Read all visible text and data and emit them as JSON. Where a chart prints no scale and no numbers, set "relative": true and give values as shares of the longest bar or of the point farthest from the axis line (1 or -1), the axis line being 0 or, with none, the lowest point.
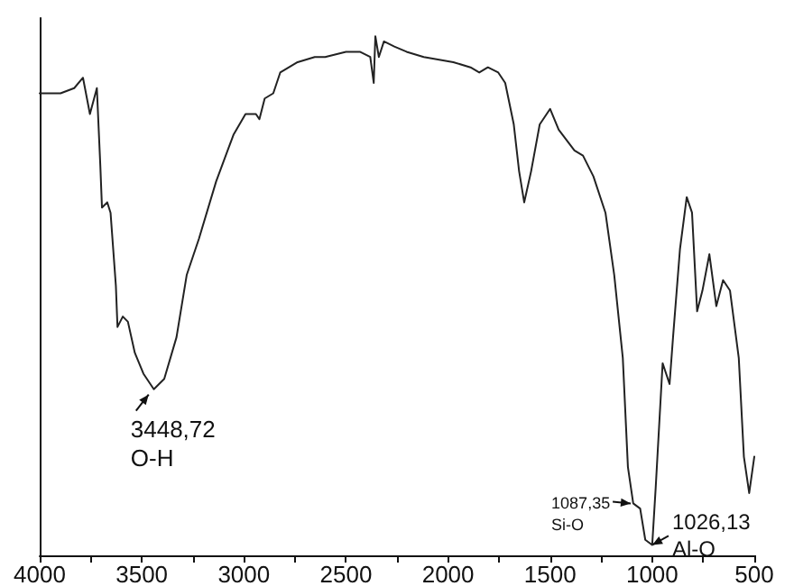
{
  "chart_data": {
    "type": "line",
    "relative": true,
    "color": "#222222",
    "x": [
      4000,
      3898,
      3831,
      3788,
      3754,
      3720,
      3703,
      3695,
      3669,
      3653,
      3627,
      3619,
      3593,
      3568,
      3534,
      3492,
      3441,
      3390,
      3330,
      3280,
      3220,
      3136,
      3051,
      2992,
      2941,
      2924,
      2898,
      2856,
      2822,
      2737,
      2653,
      2602,
      2500,
      2432,
      2381,
      2364,
      2356,
      2339,
      2314,
      2263,
      2203,
      2119,
      1974,
      1890,
      1847,
      1805,
      1754,
      1720,
      1678,
      1652,
      1627,
      1593,
      1551,
      1500,
      1458,
      1381,
      1339,
      1288,
      1229,
      1186,
      1144,
      1119,
      1093,
      1059,
      1034,
      1000,
      983,
      949,
      915,
      898,
      864,
      831,
      805,
      780,
      754,
      720,
      686,
      653,
      619,
      576,
      551,
      525,
      500
    ],
    "values": [
      0.89,
      0.89,
      0.9,
      0.92,
      0.85,
      0.9,
      0.75,
      0.67,
      0.68,
      0.66,
      0.52,
      0.44,
      0.46,
      0.45,
      0.39,
      0.35,
      0.32,
      0.34,
      0.42,
      0.54,
      0.61,
      0.72,
      0.81,
      0.85,
      0.85,
      0.84,
      0.88,
      0.89,
      0.93,
      0.95,
      0.96,
      0.96,
      0.97,
      0.97,
      0.96,
      0.91,
      1.0,
      0.96,
      0.99,
      0.98,
      0.97,
      0.96,
      0.95,
      0.94,
      0.93,
      0.94,
      0.93,
      0.91,
      0.83,
      0.74,
      0.68,
      0.74,
      0.83,
      0.86,
      0.82,
      0.78,
      0.77,
      0.73,
      0.66,
      0.54,
      0.38,
      0.17,
      0.1,
      0.09,
      0.03,
      0.02,
      0.13,
      0.37,
      0.33,
      0.42,
      0.59,
      0.69,
      0.66,
      0.47,
      0.51,
      0.58,
      0.48,
      0.53,
      0.51,
      0.38,
      0.19,
      0.12,
      0.19
    ],
    "xlim": [
      4000,
      500
    ],
    "xticks": [
      4000,
      {
        "value": 3750,
        "label": null
      },
      3500,
      {
        "value": 3250,
        "label": null
      },
      3000,
      {
        "value": 2750,
        "label": null
      },
      2500,
      {
        "value": 2250,
        "label": null
      },
      2000,
      {
        "value": 1750,
        "label": null
      },
      1500,
      {
        "value": 1250,
        "label": null
      },
      1000,
      {
        "value": 750,
        "label": null
      },
      500
    ],
    "annotations": [
      {
        "text": "3448,72\nO-H",
        "x": 3448.72,
        "y": 0.32
      },
      {
        "text": "1087,35\nSi-O",
        "x": 1087.35,
        "y": 0.1
      },
      {
        "text": "1026,13\nAl-O",
        "x": 1026.13,
        "y": 0.02
      }
    ],
    "marker": "none",
    "line_style": "solid"
  }
}
